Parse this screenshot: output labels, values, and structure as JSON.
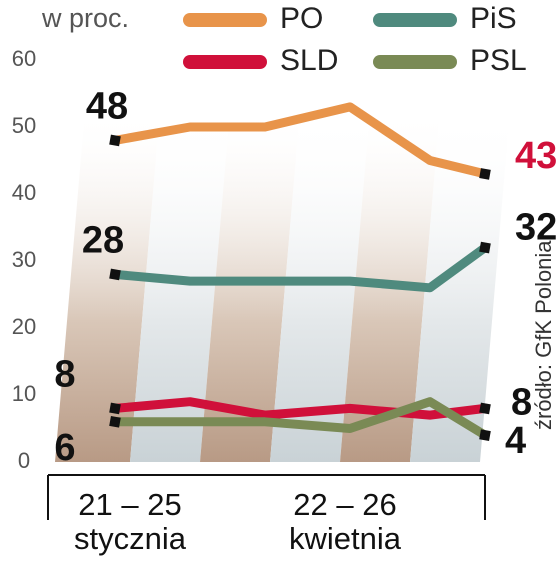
{
  "chart_data": {
    "type": "line",
    "unit_label": "w proc.",
    "source": "źródło: GfK Polonia",
    "categories": [
      "21 – 25 stycznia",
      null,
      null,
      "22 – 26 kwietnia",
      null,
      null
    ],
    "series": [
      {
        "name": "PO",
        "color": "#e8944a",
        "values": [
          48,
          50,
          50,
          53,
          45,
          43
        ],
        "label_colors": [
          "#111111",
          "#d0103a"
        ]
      },
      {
        "name": "PiS",
        "color": "#4f8a7e",
        "values": [
          28,
          27,
          27,
          27,
          26,
          32
        ],
        "label_colors": [
          "#111111",
          "#111111"
        ]
      },
      {
        "name": "SLD",
        "color": "#d0103a",
        "values": [
          8,
          9,
          7,
          8,
          7,
          8
        ],
        "label_colors": [
          "#111111",
          "#111111"
        ]
      },
      {
        "name": "PSL",
        "color": "#7a8a55",
        "values": [
          6,
          6,
          6,
          5,
          9,
          4
        ],
        "label_colors": [
          "#111111",
          "#111111"
        ]
      }
    ],
    "ylim": [
      0,
      60
    ],
    "yticks": [
      0,
      10,
      20,
      30,
      40,
      50,
      60
    ],
    "grid": false
  }
}
